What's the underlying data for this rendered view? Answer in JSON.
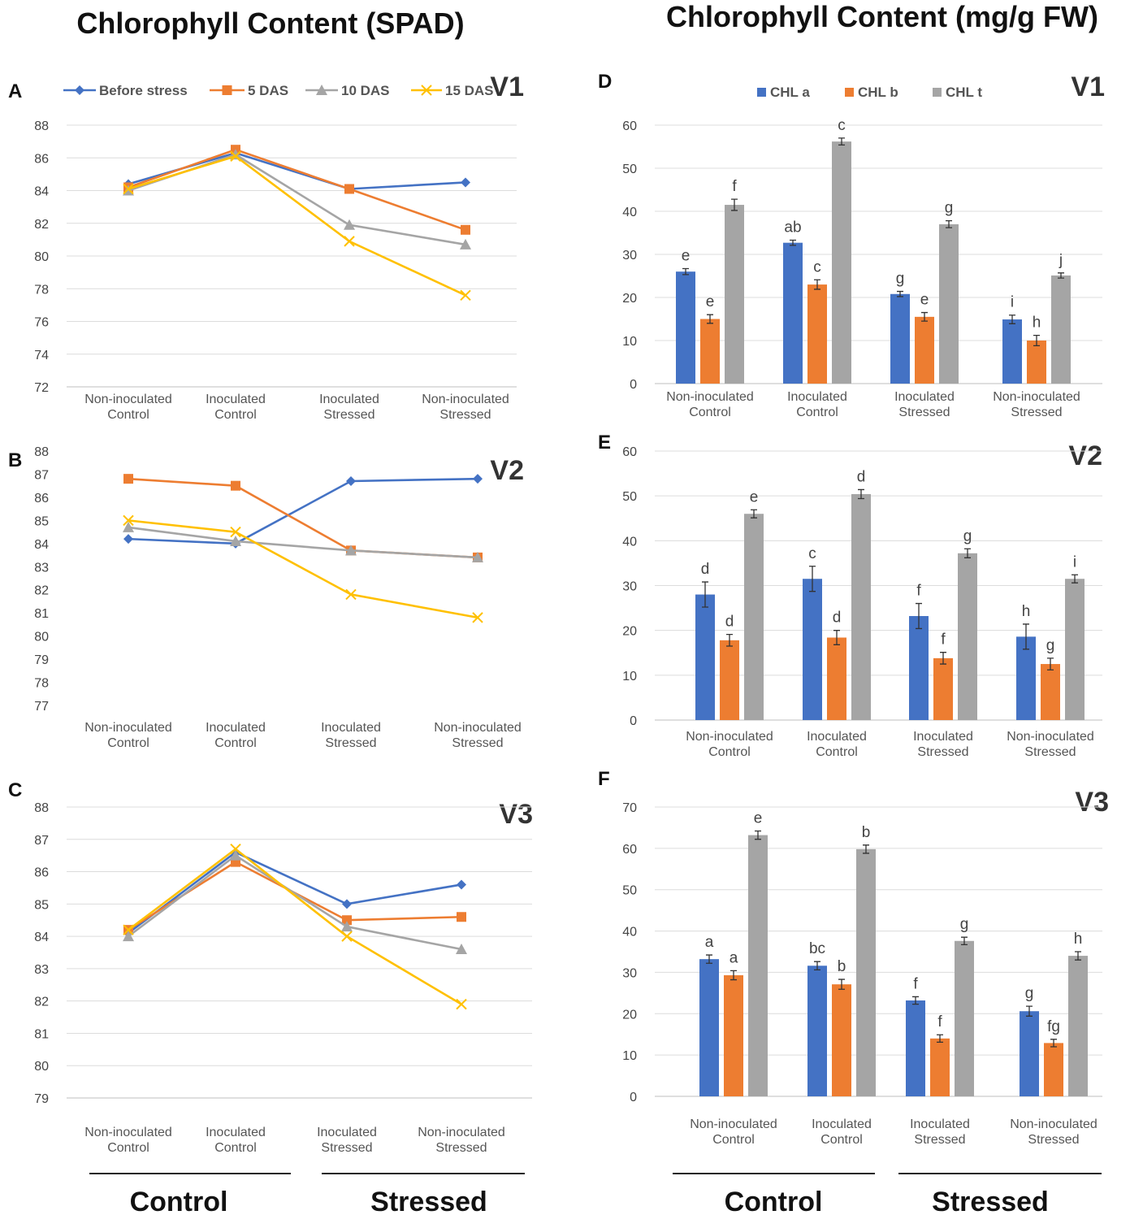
{
  "titles": {
    "left": "Chlorophyll Content (SPAD)",
    "right": "Chlorophyll Content (mg/g FW)"
  },
  "groups": {
    "left": {
      "control": "Control",
      "stressed": "Stressed"
    },
    "right": {
      "control": "Control",
      "stressed": "Stressed"
    }
  },
  "colors": {
    "blue": "#4472C4",
    "orange": "#ED7D31",
    "gray": "#A5A5A5",
    "yellow": "#FFC000"
  },
  "chart_data": [
    {
      "id": "A",
      "type": "line",
      "panel": "A",
      "variety": "V1",
      "categories": [
        "Non-inoculated\nControl",
        "Inoculated\nControl",
        "Inoculated\nStressed",
        "Non-inoculated\nStressed"
      ],
      "ylim": [
        72,
        88
      ],
      "yticks": [
        72,
        74,
        76,
        78,
        80,
        82,
        84,
        86,
        88
      ],
      "grid": true,
      "legend": "top",
      "series": [
        {
          "name": "Before stress",
          "values": [
            84.4,
            86.3,
            84.1,
            84.5
          ],
          "color": "#4472C4",
          "marker": "diamond"
        },
        {
          "name": "5 DAS",
          "values": [
            84.2,
            86.5,
            84.1,
            81.6
          ],
          "color": "#ED7D31",
          "marker": "square"
        },
        {
          "name": "10 DAS",
          "values": [
            84.0,
            86.2,
            81.9,
            80.7
          ],
          "color": "#A5A5A5",
          "marker": "triangle"
        },
        {
          "name": "15 DAS",
          "values": [
            84.1,
            86.1,
            80.9,
            77.6
          ],
          "color": "#FFC000",
          "marker": "x"
        }
      ]
    },
    {
      "id": "B",
      "type": "line",
      "panel": "B",
      "variety": "V2",
      "categories": [
        "Non-inoculated\nControl",
        "Inoculated\nControl",
        "Inoculated\nStressed",
        "Non-inoculated\nStressed"
      ],
      "ylim": [
        77,
        88
      ],
      "yticks": [
        77,
        78,
        79,
        80,
        81,
        82,
        83,
        84,
        85,
        86,
        87,
        88
      ],
      "grid": false,
      "series": [
        {
          "name": "Before stress",
          "values": [
            84.2,
            84.0,
            86.7,
            86.8
          ],
          "color": "#4472C4",
          "marker": "diamond"
        },
        {
          "name": "5 DAS",
          "values": [
            86.8,
            86.5,
            83.7,
            83.4
          ],
          "color": "#ED7D31",
          "marker": "square"
        },
        {
          "name": "10 DAS",
          "values": [
            84.7,
            84.1,
            83.7,
            83.4
          ],
          "color": "#A5A5A5",
          "marker": "triangle"
        },
        {
          "name": "15 DAS",
          "values": [
            85.0,
            84.5,
            81.8,
            80.8
          ],
          "color": "#FFC000",
          "marker": "x"
        }
      ]
    },
    {
      "id": "C",
      "type": "line",
      "panel": "C",
      "variety": "V3",
      "categories": [
        "Non-inoculated\nControl",
        "Inoculated\nControl",
        "Inoculated\nStressed",
        "Non-inoculated\nStressed"
      ],
      "ylim": [
        79,
        88
      ],
      "yticks": [
        79,
        80,
        81,
        82,
        83,
        84,
        85,
        86,
        87,
        88
      ],
      "grid": true,
      "series": [
        {
          "name": "Before stress",
          "values": [
            84.1,
            86.6,
            85.0,
            85.6
          ],
          "color": "#4472C4",
          "marker": "diamond"
        },
        {
          "name": "5 DAS",
          "values": [
            84.2,
            86.3,
            84.5,
            84.6
          ],
          "color": "#ED7D31",
          "marker": "square"
        },
        {
          "name": "10 DAS",
          "values": [
            84.0,
            86.5,
            84.3,
            83.6
          ],
          "color": "#A5A5A5",
          "marker": "triangle"
        },
        {
          "name": "15 DAS",
          "values": [
            84.2,
            86.7,
            84.0,
            81.9
          ],
          "color": "#FFC000",
          "marker": "x"
        }
      ]
    },
    {
      "id": "D",
      "type": "bar",
      "panel": "D",
      "variety": "V1",
      "categories": [
        "Non-inoculated\nControl",
        "Inoculated\nControl",
        "Inoculated\nStressed",
        "Non-inoculated\nStressed"
      ],
      "ylim": [
        0,
        60
      ],
      "yticks": [
        0,
        10,
        20,
        30,
        40,
        50,
        60
      ],
      "grid": true,
      "legend": "top",
      "series": [
        {
          "name": "CHL a",
          "color": "#4472C4",
          "values": [
            26.0,
            32.7,
            20.8,
            14.9
          ],
          "errors": [
            0.7,
            0.6,
            0.6,
            1.0
          ],
          "letters": [
            "e",
            "ab",
            "g",
            "i"
          ]
        },
        {
          "name": "CHL b",
          "color": "#ED7D31",
          "values": [
            15.0,
            23.0,
            15.5,
            10.0
          ],
          "errors": [
            1.0,
            1.1,
            1.0,
            1.2
          ],
          "letters": [
            "e",
            "c",
            "e",
            "h"
          ]
        },
        {
          "name": "CHL t",
          "color": "#A5A5A5",
          "values": [
            41.5,
            56.2,
            37.0,
            25.1
          ],
          "errors": [
            1.3,
            0.8,
            0.8,
            0.6
          ],
          "letters": [
            "f",
            "c",
            "g",
            "j"
          ]
        }
      ]
    },
    {
      "id": "E",
      "type": "bar",
      "panel": "E",
      "variety": "V2",
      "categories": [
        "Non-inoculated\nControl",
        "Inoculated\nControl",
        "Inoculated\nStressed",
        "Non-inoculated\nStressed"
      ],
      "ylim": [
        0,
        60
      ],
      "yticks": [
        0,
        10,
        20,
        30,
        40,
        50,
        60
      ],
      "grid": true,
      "series": [
        {
          "name": "CHL a",
          "color": "#4472C4",
          "values": [
            28.0,
            31.5,
            23.2,
            18.6
          ],
          "errors": [
            2.8,
            2.8,
            2.8,
            2.8
          ],
          "letters": [
            "d",
            "c",
            "f",
            "h"
          ]
        },
        {
          "name": "CHL b",
          "color": "#ED7D31",
          "values": [
            17.8,
            18.4,
            13.8,
            12.5
          ],
          "errors": [
            1.3,
            1.6,
            1.3,
            1.3
          ],
          "letters": [
            "d",
            "d",
            "f",
            "g"
          ]
        },
        {
          "name": "CHL t",
          "color": "#A5A5A5",
          "values": [
            46.0,
            50.4,
            37.2,
            31.5
          ],
          "errors": [
            0.9,
            1.0,
            1.0,
            0.9
          ],
          "letters": [
            "e",
            "d",
            "g",
            "i"
          ]
        }
      ]
    },
    {
      "id": "F",
      "type": "bar",
      "panel": "F",
      "variety": "V3",
      "categories": [
        "Non-inoculated\nControl",
        "Inoculated\nControl",
        "Inoculated\nStressed",
        "Non-inoculated\nStressed"
      ],
      "ylim": [
        0,
        70
      ],
      "yticks": [
        0,
        10,
        20,
        30,
        40,
        50,
        60,
        70
      ],
      "grid": true,
      "series": [
        {
          "name": "CHL a",
          "color": "#4472C4",
          "values": [
            33.2,
            31.6,
            23.2,
            20.6
          ],
          "errors": [
            1.0,
            1.0,
            0.9,
            1.2
          ],
          "letters": [
            "a",
            "bc",
            "f",
            "g"
          ]
        },
        {
          "name": "CHL b",
          "color": "#ED7D31",
          "values": [
            29.3,
            27.1,
            14.0,
            12.9
          ],
          "errors": [
            1.1,
            1.2,
            0.9,
            0.9
          ],
          "letters": [
            "a",
            "b",
            "f",
            "fg"
          ]
        },
        {
          "name": "CHL t",
          "color": "#A5A5A5",
          "values": [
            63.2,
            59.8,
            37.6,
            34.0
          ],
          "errors": [
            1.0,
            1.0,
            0.9,
            1.0
          ],
          "letters": [
            "e",
            "b",
            "g",
            "h"
          ]
        }
      ]
    }
  ]
}
